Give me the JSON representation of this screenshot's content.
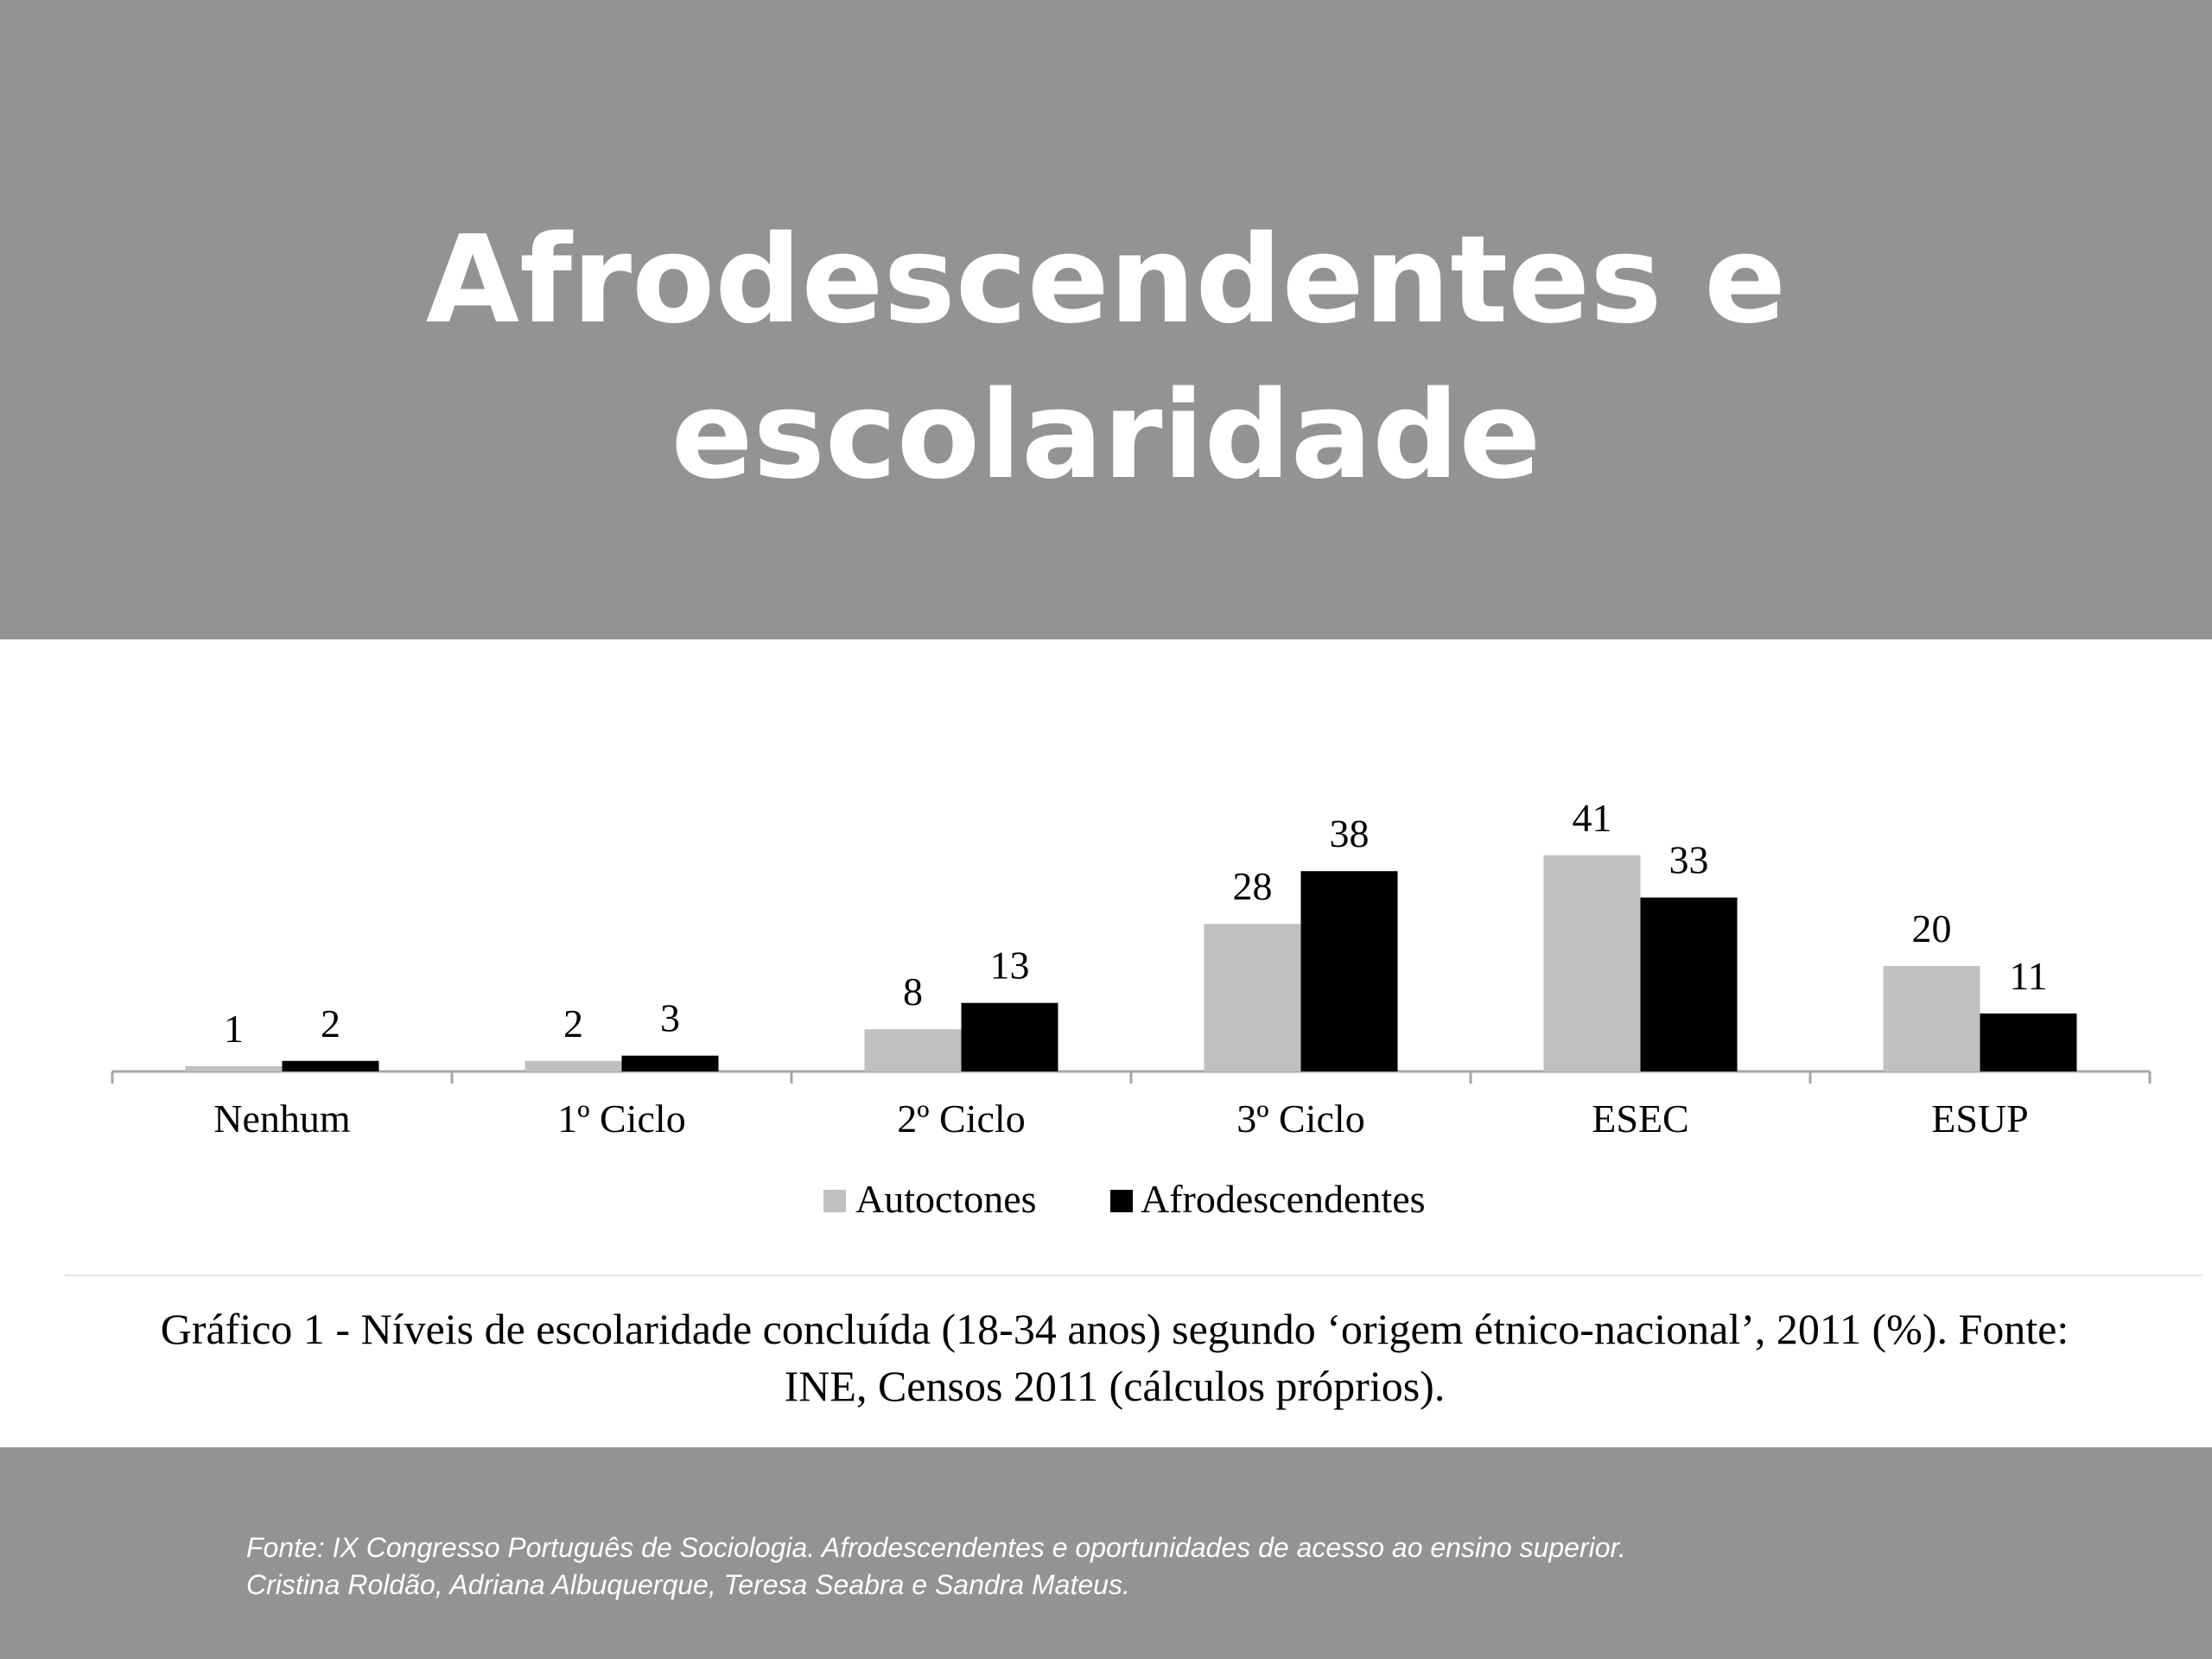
{
  "slide": {
    "title": "Afrodescendentes e escolaridade",
    "caption_line1": "Gráfico 1 - Níveis de escolaridade concluída (18-34 anos) segundo ‘origem étnico-nacional’, 2011 (%). Fonte:",
    "caption_line2": "INE, Censos 2011 (cálculos próprios).",
    "footer_line1": "Fonte: IX Congresso Português de Sociologia. Afrodescendentes e oportunidades de acesso ao ensino superior.",
    "footer_line2": "Cristina Roldão, Adriana Albuquerque, Teresa Seabra e Sandra Mateus.",
    "colors": {
      "header_background": "#939393",
      "footer_background": "#939393",
      "title_text": "#ffffff"
    }
  },
  "chart_data": {
    "type": "bar",
    "categories": [
      "Nenhum",
      "1º Ciclo",
      "2º Ciclo",
      "3º Ciclo",
      "ESEC",
      "ESUP"
    ],
    "series": [
      {
        "name": "Autoctones",
        "values": [
          1,
          2,
          8,
          28,
          41,
          20
        ],
        "color": "#c0c0c0"
      },
      {
        "name": "Afrodescendentes",
        "values": [
          2,
          3,
          13,
          38,
          33,
          11
        ],
        "color": "#000000"
      }
    ],
    "title": "",
    "xlabel": "",
    "ylabel": "",
    "ylim": [
      0,
      41
    ],
    "grid": false,
    "legend": "bottom-center",
    "data_labels": true
  }
}
